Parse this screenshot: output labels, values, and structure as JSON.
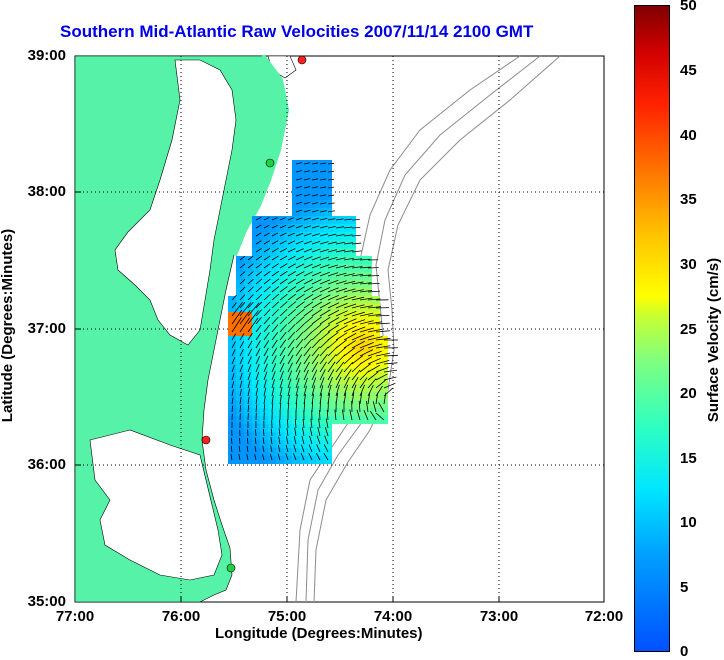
{
  "title": "Southern Mid-Atlantic Raw Velocities 2007/11/14 2100 GMT",
  "xlabel": "Longitude (Degrees:Minutes)",
  "ylabel": "Latitude (Degrees:Minutes)",
  "colorbar_label": "Surface Velocity (cm/s)",
  "x_ticks": [
    "77:00",
    "76:00",
    "75:00",
    "74:00",
    "73:00",
    "72:00"
  ],
  "y_ticks": [
    "39:00",
    "38:00",
    "37:00",
    "36:00",
    "35:00"
  ],
  "colorbar_ticks": [
    "50",
    "45",
    "40",
    "35",
    "30",
    "25",
    "20",
    "15",
    "10",
    "5",
    "0"
  ],
  "colors": {
    "land": "#55f2a8",
    "title": "#0000e6",
    "bathymetry": "#8c8c8c",
    "station_marker": "#ff2020",
    "station_marker_alt": "#20d040"
  },
  "map_extent": {
    "lon": [
      -77,
      -72
    ],
    "lat": [
      35,
      39
    ]
  },
  "stations": [
    {
      "lon": -74.83,
      "lat": 38.97,
      "color": "red"
    },
    {
      "lon": -75.17,
      "lat": 38.22,
      "color": "green"
    },
    {
      "lon": -75.72,
      "lat": 36.18,
      "color": "red"
    },
    {
      "lon": -75.52,
      "lat": 35.25,
      "color": "green"
    }
  ]
}
